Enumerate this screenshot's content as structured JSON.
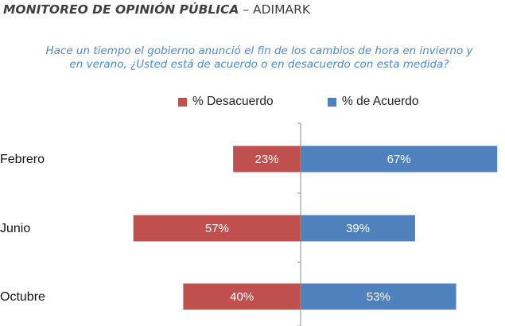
{
  "header": {
    "title_bold": "MONITOREO DE OPINIÓN PÚBLICA",
    "title_rest": " – ADIMARK"
  },
  "question": {
    "line1": "Hace un tiempo el gobierno anunció el fin de los cambios de hora en invierno y",
    "line2": "en verano, ¿Usted está de acuerdo o en desacuerdo con esta medida?"
  },
  "colors": {
    "desacuerdo": "#c0504d",
    "acuerdo": "#4f81bd"
  },
  "chart_data": {
    "type": "bar",
    "orientation": "horizontal-diverging",
    "categories": [
      "Febrero",
      "Junio",
      "Octubre"
    ],
    "series": [
      {
        "name": "% Desacuerdo",
        "values": [
          23,
          57,
          40
        ],
        "labels": [
          "23%",
          "57%",
          "40%"
        ],
        "direction": "left"
      },
      {
        "name": "% de Acuerdo",
        "values": [
          67,
          39,
          53
        ],
        "labels": [
          "67%",
          "39%",
          "53%"
        ],
        "direction": "right"
      }
    ],
    "legend_position": "top",
    "grid": false
  }
}
